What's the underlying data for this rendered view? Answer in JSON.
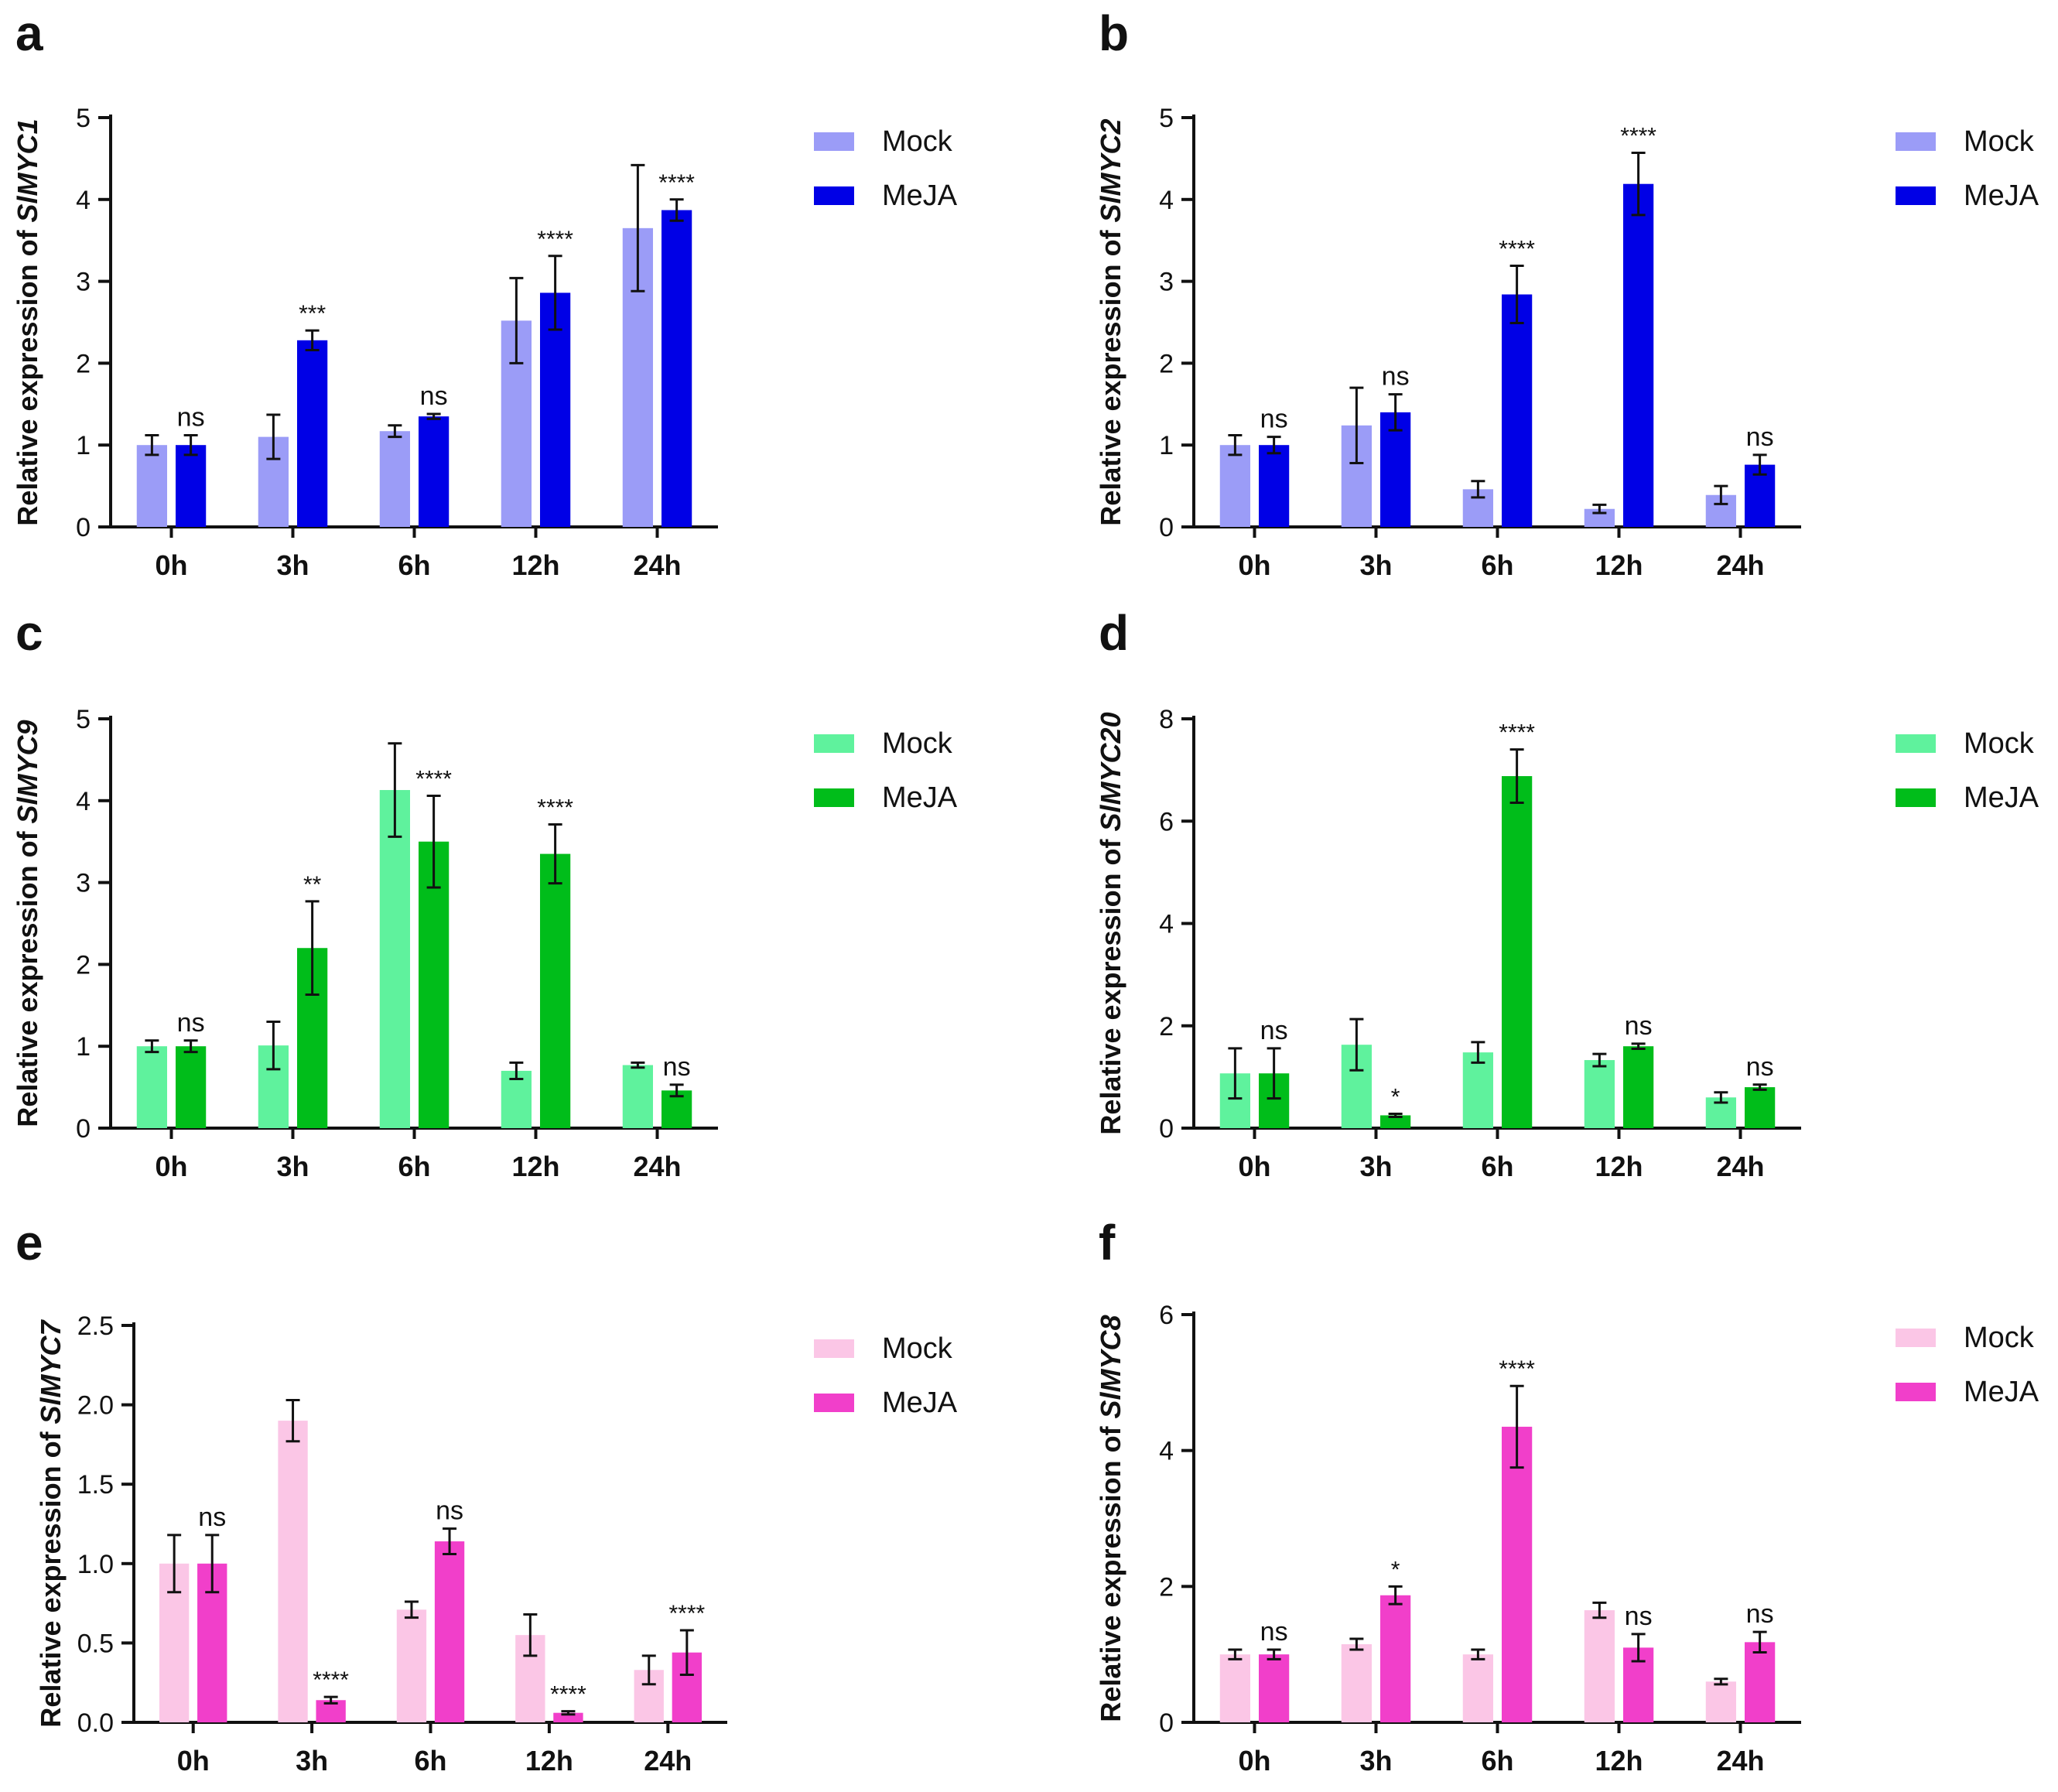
{
  "figure": {
    "legend_labels": [
      "Mock",
      "MeJA"
    ]
  },
  "chart_data": [
    {
      "panel": "a",
      "type": "bar",
      "title": "",
      "xlabel": "",
      "ylabel_prefix": "Relative expression of ",
      "gene": "SlMYC1",
      "categories": [
        "0h",
        "3h",
        "6h",
        "12h",
        "24h"
      ],
      "ylim": [
        0,
        5
      ],
      "yticks": [
        "0",
        "1",
        "2",
        "3",
        "4",
        "5"
      ],
      "colors": {
        "mock": "#9b9cf7",
        "meja": "#0000e6"
      },
      "series": [
        {
          "name": "Mock",
          "values": [
            1.0,
            1.1,
            1.17,
            2.52,
            3.65
          ],
          "errors": [
            0.12,
            0.27,
            0.07,
            0.52,
            0.77
          ]
        },
        {
          "name": "MeJA",
          "values": [
            1.0,
            2.28,
            1.35,
            2.86,
            3.87
          ],
          "errors": [
            0.12,
            0.12,
            0.03,
            0.45,
            0.13
          ]
        }
      ],
      "significance": [
        "ns",
        "***",
        "ns",
        "****",
        "****"
      ]
    },
    {
      "panel": "b",
      "type": "bar",
      "title": "",
      "xlabel": "",
      "ylabel_prefix": "Relative expression of ",
      "gene": "SlMYC2",
      "categories": [
        "0h",
        "3h",
        "6h",
        "12h",
        "24h"
      ],
      "ylim": [
        0,
        5
      ],
      "yticks": [
        "0",
        "1",
        "2",
        "3",
        "4",
        "5"
      ],
      "colors": {
        "mock": "#9b9cf7",
        "meja": "#0000e6"
      },
      "series": [
        {
          "name": "Mock",
          "values": [
            1.0,
            1.24,
            0.46,
            0.22,
            0.39
          ],
          "errors": [
            0.12,
            0.46,
            0.1,
            0.05,
            0.11
          ]
        },
        {
          "name": "MeJA",
          "values": [
            1.0,
            1.4,
            2.84,
            4.19,
            0.76
          ],
          "errors": [
            0.1,
            0.22,
            0.35,
            0.38,
            0.12
          ]
        }
      ],
      "significance": [
        "ns",
        "ns",
        "****",
        "****",
        "ns"
      ]
    },
    {
      "panel": "c",
      "type": "bar",
      "title": "",
      "xlabel": "",
      "ylabel_prefix": "Relative expression of ",
      "gene": "SlMYC9",
      "categories": [
        "0h",
        "3h",
        "6h",
        "12h",
        "24h"
      ],
      "ylim": [
        0,
        5
      ],
      "yticks": [
        "0",
        "1",
        "2",
        "3",
        "4",
        "5"
      ],
      "colors": {
        "mock": "#5ff29d",
        "meja": "#00bd1a"
      },
      "series": [
        {
          "name": "Mock",
          "values": [
            1.0,
            1.01,
            4.13,
            0.7,
            0.77
          ],
          "errors": [
            0.07,
            0.29,
            0.57,
            0.1,
            0.03
          ]
        },
        {
          "name": "MeJA",
          "values": [
            1.0,
            2.2,
            3.5,
            3.35,
            0.46
          ],
          "errors": [
            0.07,
            0.57,
            0.56,
            0.36,
            0.07
          ]
        }
      ],
      "significance": [
        "ns",
        "**",
        "****",
        "****",
        "ns"
      ]
    },
    {
      "panel": "d",
      "type": "bar",
      "title": "",
      "xlabel": "",
      "ylabel_prefix": "Relative expression of ",
      "gene": "SlMYC20",
      "categories": [
        "0h",
        "3h",
        "6h",
        "12h",
        "24h"
      ],
      "ylim": [
        0,
        8
      ],
      "yticks": [
        "0",
        "2",
        "4",
        "6",
        "8"
      ],
      "colors": {
        "mock": "#5ff29d",
        "meja": "#00bd1a"
      },
      "series": [
        {
          "name": "Mock",
          "values": [
            1.07,
            1.63,
            1.48,
            1.33,
            0.6
          ],
          "errors": [
            0.49,
            0.5,
            0.2,
            0.12,
            0.1
          ]
        },
        {
          "name": "MeJA",
          "values": [
            1.07,
            0.25,
            6.88,
            1.6,
            0.8
          ],
          "errors": [
            0.49,
            0.03,
            0.52,
            0.05,
            0.05
          ]
        }
      ],
      "significance": [
        "ns",
        "*",
        "****",
        "ns",
        "ns"
      ]
    },
    {
      "panel": "e",
      "type": "bar",
      "title": "",
      "xlabel": "",
      "ylabel_prefix": "Relative expression of ",
      "gene": "SlMYC7",
      "categories": [
        "0h",
        "3h",
        "6h",
        "12h",
        "24h"
      ],
      "ylim": [
        0,
        2.5
      ],
      "yticks": [
        "0.0",
        "0.5",
        "1.0",
        "1.5",
        "2.0",
        "2.5"
      ],
      "colors": {
        "mock": "#fbc6e6",
        "meja": "#f13fca"
      },
      "series": [
        {
          "name": "Mock",
          "values": [
            1.0,
            1.9,
            0.71,
            0.55,
            0.33
          ],
          "errors": [
            0.18,
            0.13,
            0.05,
            0.13,
            0.09
          ]
        },
        {
          "name": "MeJA",
          "values": [
            1.0,
            0.14,
            1.14,
            0.06,
            0.44
          ],
          "errors": [
            0.18,
            0.02,
            0.08,
            0.01,
            0.14
          ]
        }
      ],
      "significance": [
        "ns",
        "****",
        "ns",
        "****",
        "****"
      ]
    },
    {
      "panel": "f",
      "type": "bar",
      "title": "",
      "xlabel": "",
      "ylabel_prefix": "Relative expression of ",
      "gene": "SlMYC8",
      "categories": [
        "0h",
        "3h",
        "6h",
        "12h",
        "24h"
      ],
      "ylim": [
        0,
        6
      ],
      "yticks": [
        "0",
        "2",
        "4",
        "6"
      ],
      "colors": {
        "mock": "#fbc6e6",
        "meja": "#f13fca"
      },
      "series": [
        {
          "name": "Mock",
          "values": [
            1.0,
            1.15,
            1.0,
            1.65,
            0.6
          ],
          "errors": [
            0.07,
            0.08,
            0.07,
            0.11,
            0.04
          ]
        },
        {
          "name": "MeJA",
          "values": [
            1.0,
            1.87,
            4.35,
            1.1,
            1.18
          ],
          "errors": [
            0.07,
            0.13,
            0.6,
            0.2,
            0.15
          ]
        }
      ],
      "significance": [
        "ns",
        "*",
        "****",
        "ns",
        "ns"
      ]
    }
  ]
}
